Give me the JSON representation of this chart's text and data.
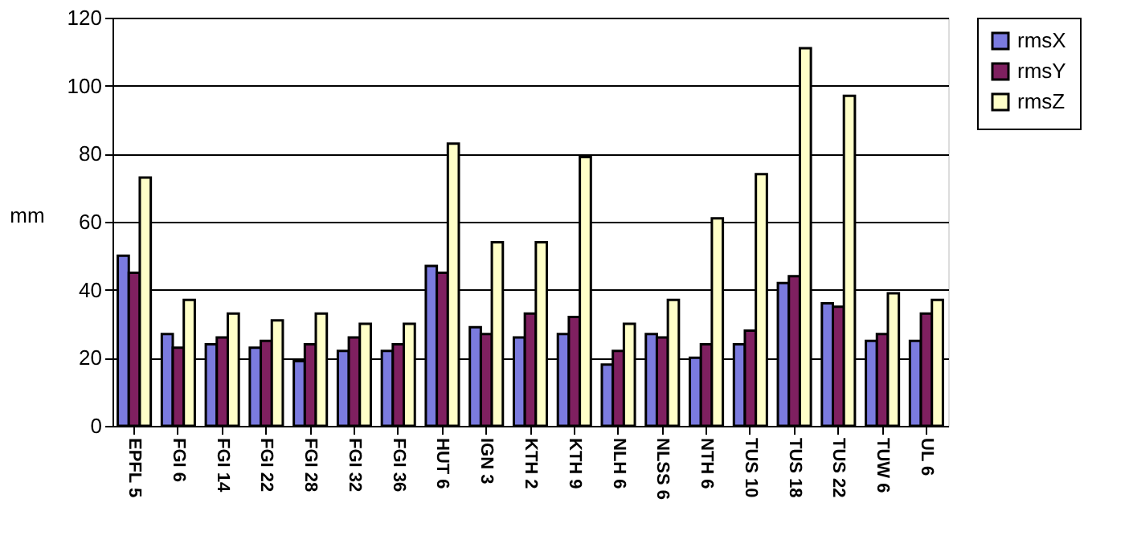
{
  "chart_data": {
    "type": "bar",
    "ylabel": "mm",
    "categories": [
      "EPFL 5",
      "FGI 6",
      "FGI 14",
      "FGI 22",
      "FGI 28",
      "FGI 32",
      "FGI 36",
      "HUT 6",
      "IGN 3",
      "KTH 2",
      "KTH 9",
      "NLH 6",
      "NLSS 6",
      "NTH 6",
      "TUS 10",
      "TUS 18",
      "TUS 22",
      "TUW 6",
      "UL 6"
    ],
    "series": [
      {
        "name": "rmsX",
        "color": "#7b7bdf",
        "values": [
          50,
          27,
          24,
          23,
          19,
          22,
          22,
          47,
          29,
          26,
          27,
          18,
          27,
          20,
          24,
          42,
          36,
          25,
          25
        ]
      },
      {
        "name": "rmsY",
        "color": "#7f2060",
        "values": [
          45,
          23,
          26,
          25,
          24,
          26,
          24,
          45,
          27,
          33,
          32,
          22,
          26,
          24,
          28,
          44,
          35,
          27,
          33
        ]
      },
      {
        "name": "rmsZ",
        "color": "#ffffc8",
        "values": [
          73,
          37,
          33,
          31,
          33,
          30,
          30,
          83,
          54,
          54,
          79,
          30,
          37,
          61,
          74,
          111,
          97,
          39,
          37
        ]
      }
    ],
    "ylim": [
      0,
      120
    ],
    "yticks": [
      0,
      20,
      40,
      60,
      80,
      100,
      120
    ],
    "grid": "y",
    "legend": "right"
  }
}
